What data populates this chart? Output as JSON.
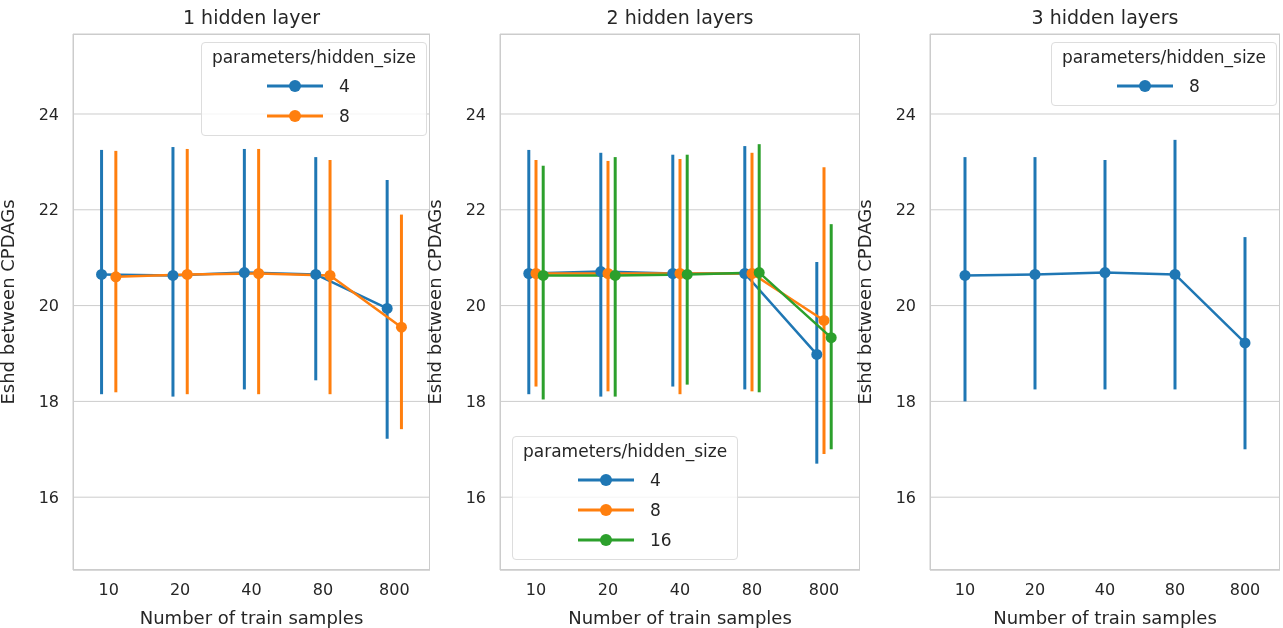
{
  "chart_data": [
    {
      "type": "line",
      "title": "1 hidden layer",
      "xlabel": "Number of train samples",
      "ylabel": "Eshd between CPDAGs",
      "categories": [
        "10",
        "20",
        "40",
        "80",
        "800"
      ],
      "ylim": [
        14.48,
        25.67
      ],
      "yticks": [
        16,
        18,
        20,
        22,
        24
      ],
      "grid": "y",
      "legend": "top right",
      "legend_title": "parameters/hidden_size",
      "marker": "circle",
      "line_style": "solid",
      "series": [
        {
          "name": "4",
          "color": "#1f77b4",
          "values": [
            20.65,
            20.63,
            20.69,
            20.65,
            19.94
          ],
          "errors": [
            [
              18.15,
              23.25
            ],
            [
              18.1,
              23.31
            ],
            [
              18.25,
              23.27
            ],
            [
              18.44,
              23.1
            ],
            [
              17.22,
              22.62
            ]
          ]
        },
        {
          "name": "8",
          "color": "#ff7f0e",
          "values": [
            20.6,
            20.65,
            20.67,
            20.63,
            19.55
          ],
          "errors": [
            [
              18.19,
              23.23
            ],
            [
              18.15,
              23.27
            ],
            [
              18.15,
              23.27
            ],
            [
              18.15,
              23.04
            ],
            [
              17.42,
              21.9
            ]
          ]
        }
      ]
    },
    {
      "type": "line",
      "title": "2 hidden layers",
      "xlabel": "Number of train samples",
      "ylabel": "Eshd between CPDAGs",
      "categories": [
        "10",
        "20",
        "40",
        "80",
        "800"
      ],
      "ylim": [
        14.48,
        25.67
      ],
      "yticks": [
        16,
        18,
        20,
        22,
        24
      ],
      "grid": "y",
      "legend": "bottom left",
      "legend_title": "parameters/hidden_size",
      "marker": "circle",
      "line_style": "solid",
      "series": [
        {
          "name": "4",
          "color": "#1f77b4",
          "values": [
            20.67,
            20.71,
            20.67,
            20.67,
            18.98
          ],
          "errors": [
            [
              18.15,
              23.25
            ],
            [
              18.1,
              23.19
            ],
            [
              18.31,
              23.15
            ],
            [
              18.25,
              23.33
            ],
            [
              16.7,
              20.91
            ]
          ]
        },
        {
          "name": "8",
          "color": "#ff7f0e",
          "values": [
            20.67,
            20.67,
            20.67,
            20.67,
            19.69
          ],
          "errors": [
            [
              18.31,
              23.04
            ],
            [
              18.21,
              23.02
            ],
            [
              18.15,
              23.06
            ],
            [
              18.21,
              23.19
            ],
            [
              16.9,
              22.89
            ]
          ]
        },
        {
          "name": "16",
          "color": "#2ca02c",
          "values": [
            20.63,
            20.63,
            20.65,
            20.69,
            19.33
          ],
          "errors": [
            [
              18.04,
              22.92
            ],
            [
              18.1,
              23.1
            ],
            [
              18.35,
              23.15
            ],
            [
              18.19,
              23.37
            ],
            [
              17.0,
              21.7
            ]
          ]
        }
      ]
    },
    {
      "type": "line",
      "title": "3 hidden layers",
      "xlabel": "Number of train samples",
      "ylabel": "Eshd between CPDAGs",
      "categories": [
        "10",
        "20",
        "40",
        "80",
        "800"
      ],
      "ylim": [
        14.48,
        25.67
      ],
      "yticks": [
        16,
        18,
        20,
        22,
        24
      ],
      "grid": "y",
      "legend": "top right",
      "legend_title": "parameters/hidden_size",
      "marker": "circle",
      "line_style": "solid",
      "series": [
        {
          "name": "8",
          "color": "#1f77b4",
          "values": [
            20.63,
            20.65,
            20.69,
            20.65,
            19.22
          ],
          "errors": [
            [
              18.0,
              23.1
            ],
            [
              18.25,
              23.1
            ],
            [
              18.25,
              23.04
            ],
            [
              18.25,
              23.46
            ],
            [
              17.0,
              21.43
            ]
          ]
        }
      ]
    }
  ]
}
